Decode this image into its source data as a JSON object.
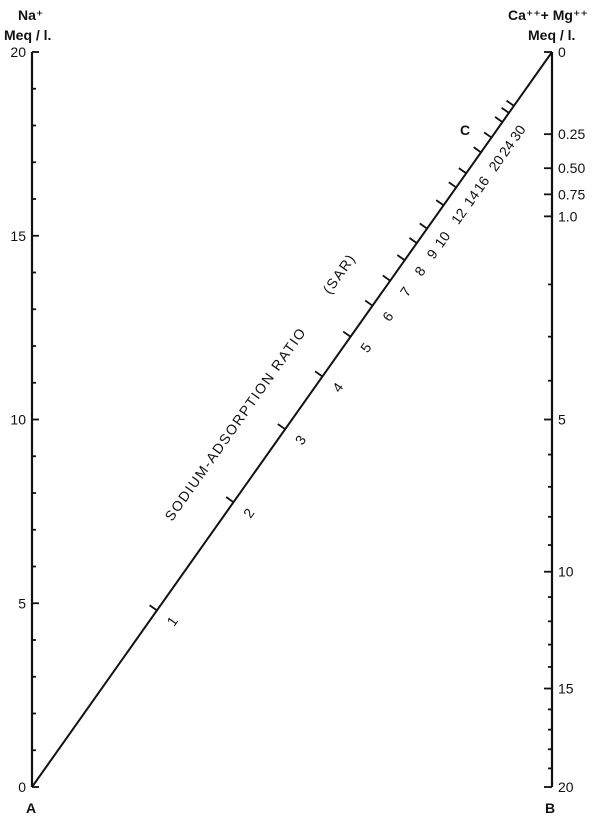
{
  "left_axis": {
    "header_line1": "Na⁺",
    "header_line2": "Meq / l.",
    "ticks": [
      {
        "label": "20",
        "value": 20
      },
      {
        "label": "15",
        "value": 15
      },
      {
        "label": "10",
        "value": 10
      },
      {
        "label": "5",
        "value": 5
      },
      {
        "label": "0",
        "value": 0
      }
    ],
    "point_label": "A"
  },
  "right_axis": {
    "header_line1": "Ca⁺⁺+ Mg⁺⁺",
    "header_line2": "Meq / l.",
    "ticks": [
      {
        "label": "0",
        "value": 0
      },
      {
        "label": "0.25",
        "value": 0.25
      },
      {
        "label": "0.50",
        "value": 0.5
      },
      {
        "label": "0.75",
        "value": 0.75
      },
      {
        "label": "1.0",
        "value": 1.0
      },
      {
        "label": "5",
        "value": 5
      },
      {
        "label": "10",
        "value": 10
      },
      {
        "label": "15",
        "value": 15
      },
      {
        "label": "20",
        "value": 20
      }
    ],
    "point_label": "B"
  },
  "sar_scale": {
    "title": "SODIUM-ADSORPTION RATIO",
    "abbrev": "(SAR)",
    "point_label": "C",
    "ticks": [
      {
        "label": "1",
        "value": 1
      },
      {
        "label": "2",
        "value": 2
      },
      {
        "label": "3",
        "value": 3
      },
      {
        "label": "4",
        "value": 4
      },
      {
        "label": "5",
        "value": 5
      },
      {
        "label": "6",
        "value": 6
      },
      {
        "label": "7",
        "value": 7
      },
      {
        "label": "8",
        "value": 8
      },
      {
        "label": "9",
        "value": 9
      },
      {
        "label": "10",
        "value": 10
      },
      {
        "label": "12",
        "value": 12
      },
      {
        "label": "14",
        "value": 14
      },
      {
        "label": "16",
        "value": 16
      },
      {
        "label": "20",
        "value": 20
      },
      {
        "label": "24",
        "value": 24
      },
      {
        "label": "30",
        "value": 30
      },
      {
        "label": "",
        "value": 35
      },
      {
        "label": "",
        "value": 40
      }
    ]
  }
}
